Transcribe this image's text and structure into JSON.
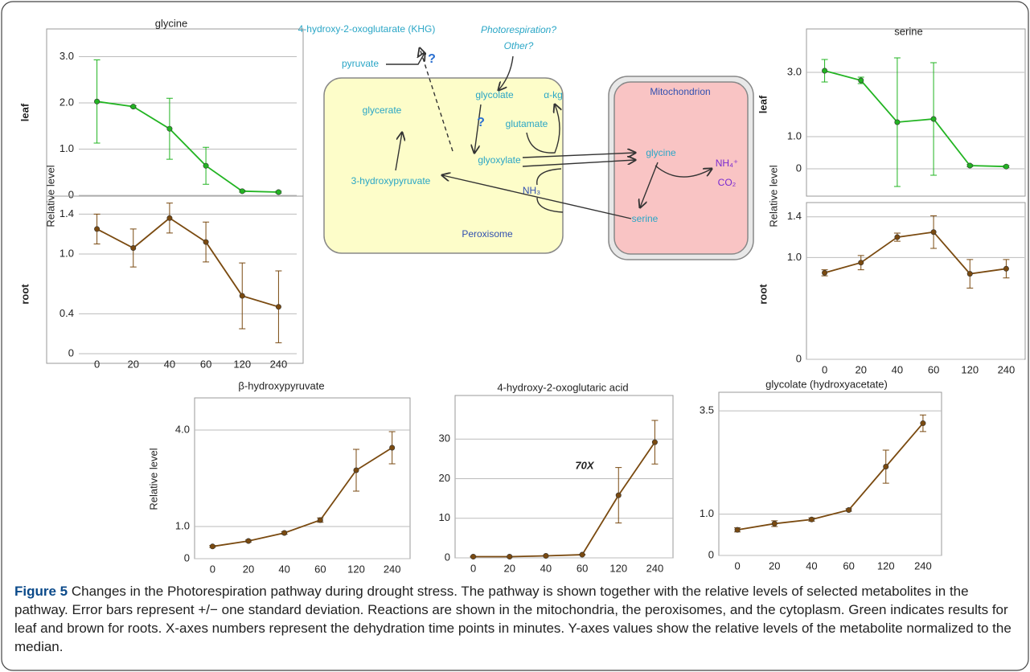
{
  "chart_data": [
    {
      "type": "line",
      "title": "glycine",
      "row_label": "leaf",
      "ylabel": "Relative level",
      "series": [
        {
          "color": "#22b422",
          "values": [
            2.03,
            1.92,
            1.44,
            0.64,
            0.09,
            0.07
          ],
          "errors": [
            0.9,
            0.02,
            0.66,
            0.4,
            0.02,
            0.02
          ]
        }
      ],
      "ylim": [
        0,
        3.6
      ],
      "yticks": [
        0,
        {
          "value": 1,
          "label": "1.0"
        },
        {
          "value": 2,
          "label": "2.0"
        },
        {
          "value": 3,
          "label": "3.0"
        }
      ],
      "grid": true
    },
    {
      "type": "line",
      "row_label": "root",
      "categories": [
        "0",
        "20",
        "40",
        "60",
        "120",
        "240"
      ],
      "series": [
        {
          "color": "#7a4a10",
          "values": [
            1.25,
            1.06,
            1.36,
            1.12,
            0.58,
            0.47
          ],
          "errors": [
            0.15,
            0.19,
            0.15,
            0.2,
            0.33,
            0.36
          ]
        }
      ],
      "ylim": [
        0,
        1.58
      ],
      "yticks": [
        0,
        0.4,
        {
          "value": 1,
          "label": "1.0"
        },
        1.4
      ],
      "grid": true
    },
    {
      "type": "line",
      "title": "serine",
      "row_label": "leaf",
      "ylabel": "Relative level",
      "series": [
        {
          "color": "#22b422",
          "values": [
            3.05,
            2.75,
            1.45,
            1.55,
            0.1,
            0.07
          ],
          "errors": [
            0.35,
            0.1,
            2.0,
            1.75,
            0.03,
            0.03
          ]
        }
      ],
      "ylim": [
        -0.85,
        4.35
      ],
      "yticks": [
        0,
        {
          "value": 1,
          "label": "1.0"
        },
        {
          "value": 3,
          "label": "3.0"
        }
      ],
      "grid": true
    },
    {
      "type": "line",
      "row_label": "root",
      "categories": [
        "0",
        "20",
        "40",
        "60",
        "120",
        "240"
      ],
      "series": [
        {
          "color": "#7a4a10",
          "values": [
            0.85,
            0.95,
            1.2,
            1.25,
            0.84,
            0.89
          ],
          "errors": [
            0.03,
            0.07,
            0.04,
            0.16,
            0.14,
            0.09
          ]
        }
      ],
      "ylim": [
        0,
        1.54
      ],
      "yticks": [
        0,
        {
          "value": 1,
          "label": "1.0"
        },
        1.4
      ],
      "grid": true
    },
    {
      "type": "line",
      "title": "β-hydroxypyruvate",
      "ylabel": "Relative level",
      "categories": [
        "0",
        "20",
        "40",
        "60",
        "120",
        "240"
      ],
      "series": [
        {
          "color": "#7a4a10",
          "values": [
            0.38,
            0.55,
            0.8,
            1.2,
            2.75,
            3.45
          ],
          "errors": [
            0.03,
            0.03,
            0.04,
            0.07,
            0.65,
            0.5
          ]
        }
      ],
      "ylim": [
        0,
        5.0
      ],
      "yticks": [
        0,
        {
          "value": 1,
          "label": "1.0"
        },
        {
          "value": 4,
          "label": "4.0"
        }
      ],
      "grid": true
    },
    {
      "type": "line",
      "title": "4-hydroxy-2-oxoglutaric acid",
      "annotation": "70X",
      "categories": [
        "0",
        "20",
        "40",
        "60",
        "120",
        "240"
      ],
      "series": [
        {
          "color": "#7a4a10",
          "values": [
            0.3,
            0.3,
            0.5,
            0.8,
            15.8,
            29.2
          ],
          "errors": [
            0.1,
            0.1,
            0.1,
            0.1,
            7,
            5.5
          ]
        }
      ],
      "ylim": [
        0,
        41
      ],
      "yticks": [
        0,
        10,
        20,
        30
      ],
      "grid": true
    },
    {
      "type": "line",
      "title": "glycolate (hydroxyacetate)",
      "categories": [
        "0",
        "20",
        "40",
        "60",
        "120",
        "240"
      ],
      "series": [
        {
          "color": "#7a4a10",
          "values": [
            0.62,
            0.77,
            0.87,
            1.1,
            2.15,
            3.2
          ],
          "errors": [
            0.05,
            0.07,
            0.04,
            0.03,
            0.4,
            0.2
          ]
        }
      ],
      "ylim": [
        0,
        3.95
      ],
      "yticks": [
        0,
        {
          "value": 1,
          "label": "1.0"
        },
        3.5
      ],
      "grid": true
    }
  ],
  "diagram": {
    "nodes": [
      {
        "label": "4-hydroxy-2-oxoglutarate (KHG)"
      },
      {
        "label": "Photorespiration?"
      },
      {
        "label": "Other?"
      },
      {
        "label": "?"
      },
      {
        "label": "pyruvate"
      },
      {
        "label": "glycerate"
      },
      {
        "label": "glycolate"
      },
      {
        "label": "α-kg"
      },
      {
        "label": "?"
      },
      {
        "label": "glutamate"
      },
      {
        "label": "glyoxylate"
      },
      {
        "label": "3-hydroxypyruvate"
      },
      {
        "label": "NH₃"
      },
      {
        "label": "Peroxisome"
      },
      {
        "label": "Mitochondrion"
      },
      {
        "label": "glycine"
      },
      {
        "label": "NH₄⁺"
      },
      {
        "label": "CO₂"
      },
      {
        "label": "serine"
      }
    ]
  },
  "caption": {
    "label": "Figure 5",
    "text": "Changes in the Photorespiration pathway during drought stress. The pathway is shown together with the relative levels of selected metabolites in the pathway. Error bars represent +/− one standard deviation. Reactions are shown in the mitochondria, the peroxisomes, and the cytoplasm. Green indicates results for leaf and brown for roots. X-axes numbers represent the dehydration time points in minutes. Y-axes values show the relative levels of the metabolite normalized to the median."
  }
}
